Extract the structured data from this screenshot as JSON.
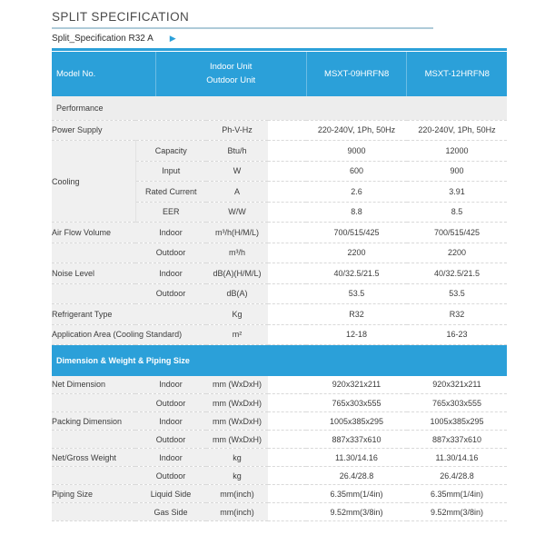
{
  "page": {
    "title": "SPLIT SPECIFICATION",
    "subtitle": "Split_Specification R32 A",
    "arrow_glyph": "▶"
  },
  "colors": {
    "accent_blue": "#2ba0d9",
    "label_gray_bg": "#f0f0f0",
    "section_gray_bg": "#ededed"
  },
  "table": {
    "header": {
      "model_no_label": "Model No.",
      "unit_col_line1": "Indoor Unit",
      "unit_col_line2": "Outdoor Unit",
      "model_1": "MSXT-09HRFN8",
      "model_2": "MSXT-12HRFN8"
    },
    "rows": [
      {
        "type": "section",
        "accent": false,
        "label": "Performance"
      },
      {
        "type": "data",
        "label": "Power Supply",
        "label_colspan": 2,
        "unit": "Ph-V-Hz",
        "v1": "220-240V, 1Ph, 50Hz",
        "v2": "220-240V, 1Ph, 50Hz"
      },
      {
        "type": "data",
        "label": "Cooling",
        "label_rowspan": 4,
        "sub": "Capacity",
        "unit": "Btu/h",
        "v1": "9000",
        "v2": "12000"
      },
      {
        "type": "data",
        "skip_label": true,
        "sub": "Input",
        "unit": "W",
        "v1": "600",
        "v2": "900"
      },
      {
        "type": "data",
        "skip_label": true,
        "sub": "Rated Current",
        "unit": "A",
        "v1": "2.6",
        "v2": "3.91"
      },
      {
        "type": "data",
        "skip_label": true,
        "sub": "EER",
        "unit": "W/W",
        "v1": "8.8",
        "v2": "8.5"
      },
      {
        "type": "data",
        "label": "Air Flow Volume",
        "sub": "Indoor",
        "unit": "m³/h(H/M/L)",
        "v1": "700/515/425",
        "v2": "700/515/425"
      },
      {
        "type": "data",
        "label": "",
        "sub": "Outdoor",
        "unit": "m³/h",
        "v1": "2200",
        "v2": "2200"
      },
      {
        "type": "data",
        "label": "Noise Level",
        "sub": "Indoor",
        "unit": "dB(A)(H/M/L)",
        "v1": "40/32.5/21.5",
        "v2": "40/32.5/21.5"
      },
      {
        "type": "data",
        "label": "",
        "sub": "Outdoor",
        "unit": "dB(A)",
        "v1": "53.5",
        "v2": "53.5"
      },
      {
        "type": "data",
        "label": "Refrigerant Type",
        "label_colspan": 2,
        "unit": "Kg",
        "v1": "R32",
        "v2": "R32"
      },
      {
        "type": "data",
        "label": "Application Area (Cooling Standard)",
        "label_colspan": 2,
        "unit": "m²",
        "v1": "12-18",
        "v2": "16-23"
      },
      {
        "type": "section",
        "accent": true,
        "label": "Dimension & Weight & Piping Size"
      },
      {
        "type": "data",
        "label": "Net Dimension",
        "sub": "Indoor",
        "unit": "mm (WxDxH)",
        "v1": "920x321x211",
        "v2": "920x321x211"
      },
      {
        "type": "data",
        "label": "",
        "sub": "Outdoor",
        "unit": "mm (WxDxH)",
        "v1": "765x303x555",
        "v2": "765x303x555"
      },
      {
        "type": "data",
        "label": "Packing Dimension",
        "sub": "Indoor",
        "unit": "mm (WxDxH)",
        "v1": "1005x385x295",
        "v2": "1005x385x295"
      },
      {
        "type": "data",
        "label": "",
        "sub": "Outdoor",
        "unit": "mm (WxDxH)",
        "v1": "887x337x610",
        "v2": "887x337x610"
      },
      {
        "type": "data",
        "label": "Net/Gross Weight",
        "sub": "Indoor",
        "unit": "kg",
        "v1": "11.30/14.16",
        "v2": "11.30/14.16"
      },
      {
        "type": "data",
        "label": "",
        "sub": "Outdoor",
        "unit": "kg",
        "v1": "26.4/28.8",
        "v2": "26.4/28.8"
      },
      {
        "type": "data",
        "label": "Piping Size",
        "sub": "Liquid Side",
        "unit": "mm(inch)",
        "v1": "6.35mm(1/4in)",
        "v2": "6.35mm(1/4in)"
      },
      {
        "type": "data",
        "label": "",
        "sub": "Gas Side",
        "unit": "mm(inch)",
        "v1": "9.52mm(3/8in)",
        "v2": "9.52mm(3/8in)"
      }
    ]
  }
}
